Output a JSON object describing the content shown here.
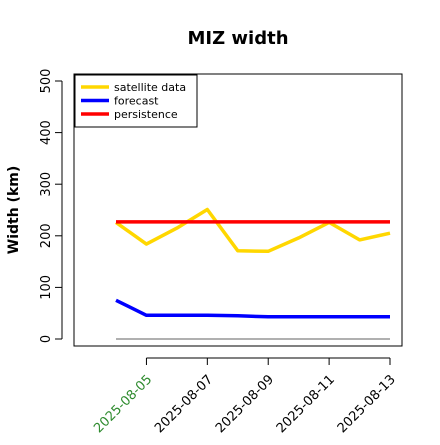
{
  "chart_data": {
    "type": "line",
    "title": "MIZ width",
    "xlabel": "",
    "ylabel": "Width (km)",
    "x": [
      "2025-08-04",
      "2025-08-05",
      "2025-08-06",
      "2025-08-07",
      "2025-08-08",
      "2025-08-09",
      "2025-08-10",
      "2025-08-11",
      "2025-08-12",
      "2025-08-13"
    ],
    "xticks": [
      "2025-08-05",
      "2025-08-07",
      "2025-08-09",
      "2025-08-11",
      "2025-08-13"
    ],
    "highlighted_xtick": "2025-08-05",
    "highlight_color": "#2e8b2e",
    "ylim": [
      0,
      500
    ],
    "yticks": [
      0,
      100,
      200,
      300,
      400,
      500
    ],
    "grid": false,
    "legend_position": "top-left",
    "baseline": {
      "value": 0,
      "color": "#808080"
    },
    "series": [
      {
        "name": "satellite data",
        "color": "#ffd700",
        "values": [
          226,
          184,
          215,
          251,
          171,
          170,
          196,
          226,
          192,
          205
        ]
      },
      {
        "name": "forecast",
        "color": "#0000ff",
        "values": [
          75,
          46,
          46,
          46,
          45,
          43,
          43,
          43,
          43,
          43
        ]
      },
      {
        "name": "persistence",
        "color": "#ff0000",
        "values": [
          227,
          227,
          227,
          227,
          227,
          227,
          227,
          227,
          227,
          227
        ]
      }
    ]
  }
}
